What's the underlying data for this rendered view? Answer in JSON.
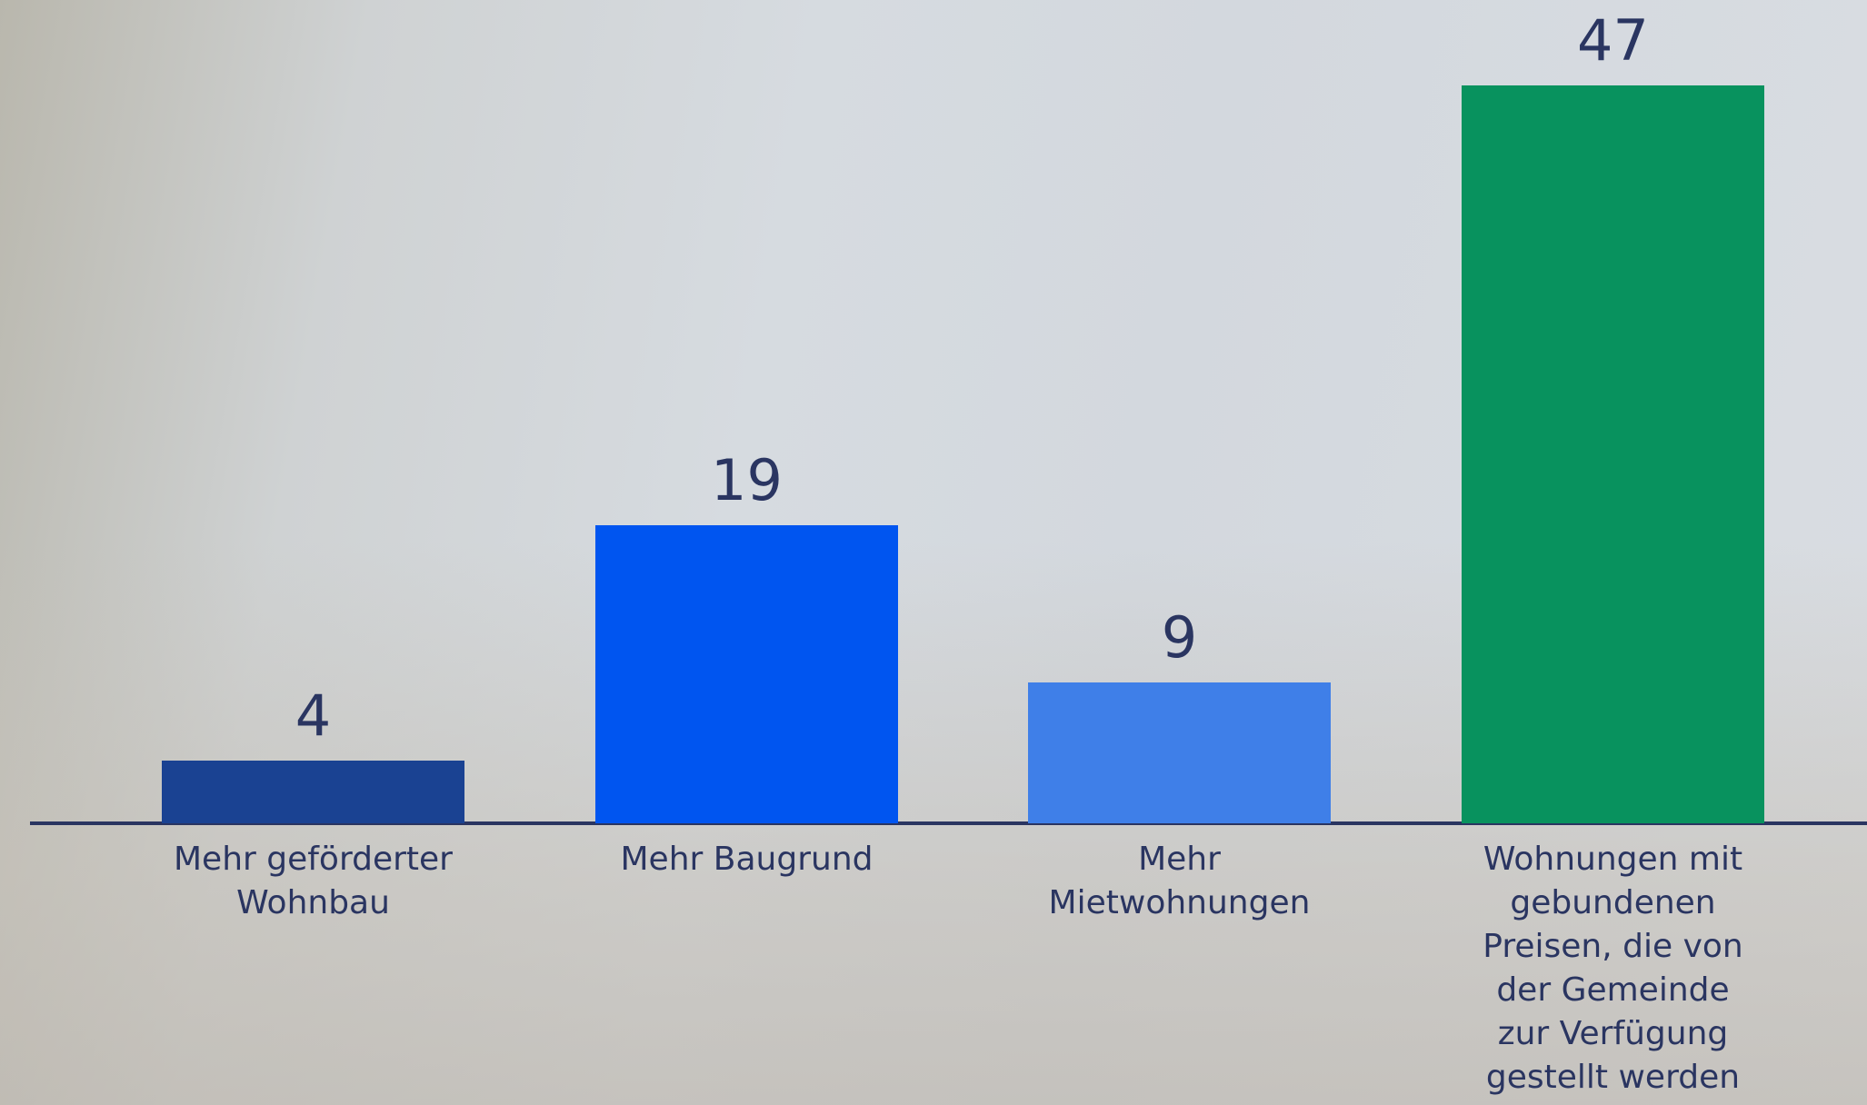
{
  "chart_data": {
    "type": "bar",
    "categories": [
      "Mehr geförderter Wohnbau",
      "Mehr Baugrund",
      "Mehr Mietwohnungen",
      "Wohnungen mit gebundenen Preisen, die von der Gemeinde zur Verfügung gestellt werden"
    ],
    "values": [
      4,
      19,
      9,
      47
    ],
    "colors": [
      "#1a4292",
      "#0055f0",
      "#3f7fe8",
      "#08925e"
    ]
  }
}
